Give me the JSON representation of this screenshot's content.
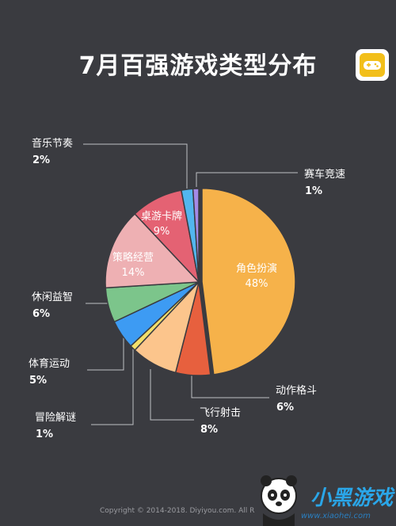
{
  "header": {
    "title": "7月百强游戏类型分布"
  },
  "footer": {
    "copyright": "Copyright © 2014-2018. Diyiyou.com. All R"
  },
  "watermark": {
    "brand": "小黑游戏",
    "url": "www.xiaohei.com"
  },
  "icons": {
    "app_logo": "gamepad-icon",
    "mascot": "panda-icon"
  },
  "colors": {
    "background": "#3a3b40",
    "brand_yellow": "#f2bf1a"
  },
  "chart_data": {
    "type": "pie",
    "title": "7月百强游戏类型分布",
    "categories": [
      "角色扮演",
      "动作格斗",
      "飞行射击",
      "冒险解谜",
      "体育运动",
      "休闲益智",
      "策略经营",
      "桌游卡牌",
      "音乐节奏",
      "赛车竞速"
    ],
    "values": [
      48,
      6,
      8,
      1,
      5,
      6,
      14,
      9,
      2,
      1
    ],
    "value_labels": [
      "48%",
      "6%",
      "8%",
      "1%",
      "5%",
      "6%",
      "14%",
      "9%",
      "2%",
      "1%"
    ],
    "colors": [
      "#f6b24a",
      "#e7603e",
      "#fcc58c",
      "#f3df6a",
      "#3d9bf3",
      "#7cc58b",
      "#eeb0b3",
      "#e46273",
      "#52b6ee",
      "#a48ae6"
    ],
    "legend": "callout-labels"
  }
}
